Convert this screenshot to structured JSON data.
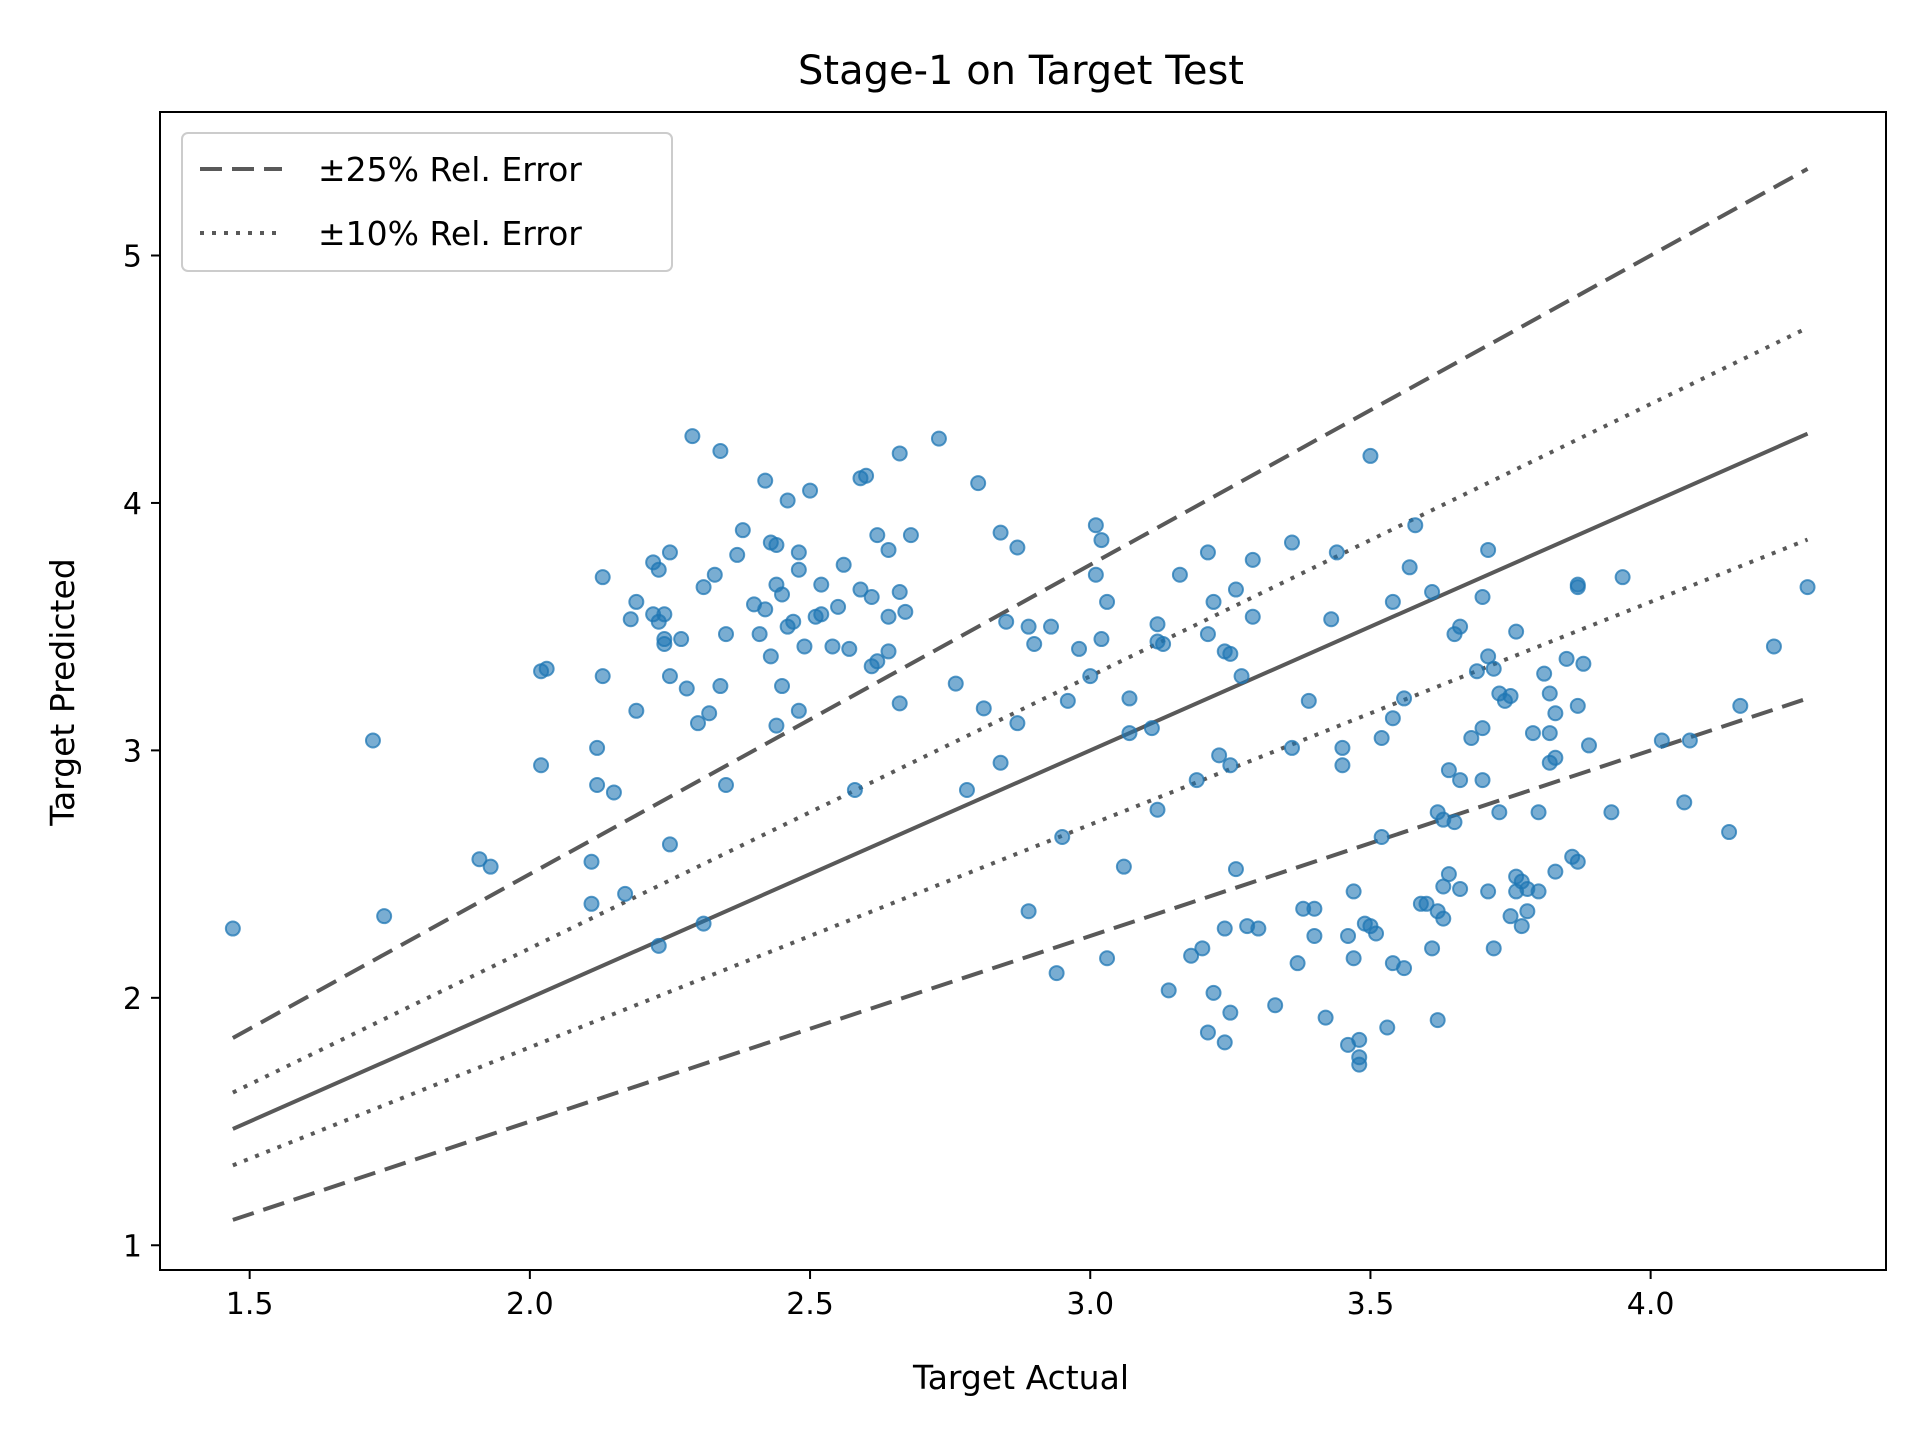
{
  "chart_data": {
    "type": "scatter",
    "title": "Stage-1 on Target Test",
    "xlabel": "Target Actual",
    "ylabel": "Target Predicted",
    "xlim": [
      1.34,
      4.42
    ],
    "ylim": [
      0.9,
      5.58
    ],
    "xticks": [
      1.5,
      2.0,
      2.5,
      3.0,
      3.5,
      4.0
    ],
    "xtick_labels": [
      "1.5",
      "2.0",
      "2.5",
      "3.0",
      "3.5",
      "4.0"
    ],
    "yticks": [
      1,
      2,
      3,
      4,
      5
    ],
    "ytick_labels": [
      "1",
      "2",
      "3",
      "4",
      "5"
    ],
    "grid": false,
    "legend_position": "top-left",
    "colors": {
      "points": "#1f77b4",
      "lines": "#595959"
    },
    "reference_lines": [
      {
        "kind": "identity",
        "style": "solid",
        "factor": 1.0,
        "x_range": [
          1.47,
          4.28
        ]
      },
      {
        "kind": "upper-25",
        "style": "dashed",
        "factor": 1.25,
        "x_range": [
          1.47,
          4.28
        ],
        "legend": "±25% Rel. Error"
      },
      {
        "kind": "lower-25",
        "style": "dashed",
        "factor": 0.75,
        "x_range": [
          1.47,
          4.28
        ]
      },
      {
        "kind": "upper-10",
        "style": "dotted",
        "factor": 1.1,
        "x_range": [
          1.47,
          4.28
        ],
        "legend": "±10% Rel. Error"
      },
      {
        "kind": "lower-10",
        "style": "dotted",
        "factor": 0.9,
        "x_range": [
          1.47,
          4.28
        ]
      }
    ],
    "legend": [
      {
        "label": "±25% Rel. Error",
        "style": "dashed"
      },
      {
        "label": "±10% Rel. Error",
        "style": "dotted"
      }
    ],
    "points": [
      [
        1.47,
        2.28
      ],
      [
        1.72,
        3.04
      ],
      [
        1.74,
        2.33
      ],
      [
        1.91,
        2.56
      ],
      [
        1.93,
        2.53
      ],
      [
        2.02,
        3.32
      ],
      [
        2.03,
        3.33
      ],
      [
        2.02,
        2.94
      ],
      [
        2.11,
        2.55
      ],
      [
        2.11,
        2.38
      ],
      [
        2.12,
        3.01
      ],
      [
        2.12,
        2.86
      ],
      [
        2.13,
        3.3
      ],
      [
        2.13,
        3.7
      ],
      [
        2.15,
        2.83
      ],
      [
        2.17,
        2.42
      ],
      [
        2.18,
        3.53
      ],
      [
        2.19,
        3.6
      ],
      [
        2.19,
        3.16
      ],
      [
        2.22,
        3.76
      ],
      [
        2.22,
        3.55
      ],
      [
        2.23,
        3.73
      ],
      [
        2.23,
        3.52
      ],
      [
        2.24,
        3.55
      ],
      [
        2.24,
        3.45
      ],
      [
        2.24,
        3.43
      ],
      [
        2.25,
        3.8
      ],
      [
        2.25,
        3.3
      ],
      [
        2.25,
        2.62
      ],
      [
        2.23,
        2.21
      ],
      [
        2.27,
        3.45
      ],
      [
        2.28,
        3.25
      ],
      [
        2.29,
        4.27
      ],
      [
        2.3,
        3.11
      ],
      [
        2.31,
        3.66
      ],
      [
        2.32,
        3.15
      ],
      [
        2.33,
        3.71
      ],
      [
        2.34,
        3.26
      ],
      [
        2.34,
        4.21
      ],
      [
        2.35,
        3.47
      ],
      [
        2.35,
        2.86
      ],
      [
        2.31,
        2.3
      ],
      [
        2.37,
        3.79
      ],
      [
        2.38,
        3.89
      ],
      [
        2.4,
        3.59
      ],
      [
        2.41,
        3.47
      ],
      [
        2.42,
        4.09
      ],
      [
        2.42,
        3.57
      ],
      [
        2.43,
        3.38
      ],
      [
        2.43,
        3.84
      ],
      [
        2.44,
        3.83
      ],
      [
        2.44,
        3.67
      ],
      [
        2.44,
        3.1
      ],
      [
        2.45,
        3.63
      ],
      [
        2.45,
        3.26
      ],
      [
        2.46,
        4.01
      ],
      [
        2.46,
        3.5
      ],
      [
        2.47,
        3.52
      ],
      [
        2.48,
        3.73
      ],
      [
        2.48,
        3.8
      ],
      [
        2.49,
        3.42
      ],
      [
        2.48,
        3.16
      ],
      [
        2.5,
        4.05
      ],
      [
        2.51,
        3.54
      ],
      [
        2.52,
        3.67
      ],
      [
        2.52,
        3.55
      ],
      [
        2.54,
        3.42
      ],
      [
        2.55,
        3.58
      ],
      [
        2.56,
        3.75
      ],
      [
        2.57,
        3.41
      ],
      [
        2.58,
        2.84
      ],
      [
        2.59,
        4.1
      ],
      [
        2.59,
        3.65
      ],
      [
        2.6,
        4.11
      ],
      [
        2.61,
        3.62
      ],
      [
        2.61,
        3.34
      ],
      [
        2.62,
        3.87
      ],
      [
        2.62,
        3.36
      ],
      [
        2.64,
        3.81
      ],
      [
        2.64,
        3.54
      ],
      [
        2.64,
        3.4
      ],
      [
        2.66,
        4.2
      ],
      [
        2.66,
        3.64
      ],
      [
        2.67,
        3.56
      ],
      [
        2.68,
        3.87
      ],
      [
        2.66,
        3.19
      ],
      [
        2.73,
        4.26
      ],
      [
        2.76,
        3.27
      ],
      [
        2.78,
        2.84
      ],
      [
        2.8,
        4.08
      ],
      [
        2.81,
        3.17
      ],
      [
        2.84,
        3.88
      ],
      [
        2.85,
        3.52
      ],
      [
        2.84,
        2.95
      ],
      [
        2.87,
        3.82
      ],
      [
        2.87,
        3.11
      ],
      [
        2.89,
        3.5
      ],
      [
        2.9,
        3.43
      ],
      [
        2.89,
        2.35
      ],
      [
        2.93,
        3.5
      ],
      [
        2.94,
        2.1
      ],
      [
        2.96,
        3.2
      ],
      [
        2.95,
        2.65
      ],
      [
        2.98,
        3.41
      ],
      [
        3.0,
        3.3
      ],
      [
        3.01,
        3.71
      ],
      [
        3.01,
        3.91
      ],
      [
        3.02,
        3.85
      ],
      [
        3.02,
        3.45
      ],
      [
        3.03,
        3.6
      ],
      [
        3.03,
        2.16
      ],
      [
        3.06,
        2.53
      ],
      [
        3.07,
        3.21
      ],
      [
        3.07,
        3.07
      ],
      [
        3.11,
        3.09
      ],
      [
        3.12,
        3.51
      ],
      [
        3.12,
        3.44
      ],
      [
        3.13,
        3.43
      ],
      [
        3.12,
        2.76
      ],
      [
        3.14,
        2.03
      ],
      [
        3.16,
        3.71
      ],
      [
        3.18,
        2.17
      ],
      [
        3.19,
        2.88
      ],
      [
        3.2,
        2.2
      ],
      [
        3.21,
        3.47
      ],
      [
        3.21,
        3.8
      ],
      [
        3.22,
        3.6
      ],
      [
        3.22,
        2.02
      ],
      [
        3.23,
        2.98
      ],
      [
        3.24,
        3.4
      ],
      [
        3.24,
        2.28
      ],
      [
        3.24,
        1.82
      ],
      [
        3.25,
        3.39
      ],
      [
        3.25,
        2.94
      ],
      [
        3.25,
        1.94
      ],
      [
        3.26,
        3.65
      ],
      [
        3.26,
        2.52
      ],
      [
        3.27,
        3.3
      ],
      [
        3.28,
        2.29
      ],
      [
        3.29,
        3.54
      ],
      [
        3.29,
        3.77
      ],
      [
        3.3,
        2.28
      ],
      [
        3.21,
        1.86
      ],
      [
        3.33,
        1.97
      ],
      [
        3.36,
        3.84
      ],
      [
        3.36,
        3.01
      ],
      [
        3.37,
        2.14
      ],
      [
        3.38,
        2.36
      ],
      [
        3.39,
        3.2
      ],
      [
        3.4,
        2.36
      ],
      [
        3.4,
        2.25
      ],
      [
        3.42,
        1.92
      ],
      [
        3.43,
        3.53
      ],
      [
        3.44,
        3.8
      ],
      [
        3.45,
        2.94
      ],
      [
        3.45,
        3.01
      ],
      [
        3.46,
        2.25
      ],
      [
        3.47,
        2.43
      ],
      [
        3.46,
        1.81
      ],
      [
        3.47,
        2.16
      ],
      [
        3.48,
        1.83
      ],
      [
        3.48,
        1.76
      ],
      [
        3.48,
        1.73
      ],
      [
        3.49,
        2.3
      ],
      [
        3.5,
        2.29
      ],
      [
        3.5,
        4.19
      ],
      [
        3.51,
        2.26
      ],
      [
        3.52,
        3.05
      ],
      [
        3.52,
        2.65
      ],
      [
        3.53,
        1.88
      ],
      [
        3.54,
        3.6
      ],
      [
        3.54,
        3.13
      ],
      [
        3.54,
        2.14
      ],
      [
        3.56,
        3.21
      ],
      [
        3.56,
        2.12
      ],
      [
        3.57,
        3.74
      ],
      [
        3.58,
        3.91
      ],
      [
        3.59,
        2.38
      ],
      [
        3.6,
        2.38
      ],
      [
        3.61,
        2.2
      ],
      [
        3.61,
        3.64
      ],
      [
        3.62,
        2.35
      ],
      [
        3.62,
        2.75
      ],
      [
        3.62,
        1.91
      ],
      [
        3.63,
        2.45
      ],
      [
        3.63,
        2.32
      ],
      [
        3.63,
        2.72
      ],
      [
        3.64,
        2.5
      ],
      [
        3.64,
        2.92
      ],
      [
        3.65,
        2.71
      ],
      [
        3.65,
        3.47
      ],
      [
        3.66,
        2.44
      ],
      [
        3.66,
        2.88
      ],
      [
        3.66,
        3.5
      ],
      [
        3.68,
        3.05
      ],
      [
        3.69,
        3.32
      ],
      [
        3.7,
        3.62
      ],
      [
        3.7,
        3.09
      ],
      [
        3.7,
        2.88
      ],
      [
        3.71,
        3.81
      ],
      [
        3.71,
        3.38
      ],
      [
        3.71,
        2.43
      ],
      [
        3.72,
        3.33
      ],
      [
        3.72,
        2.2
      ],
      [
        3.73,
        2.75
      ],
      [
        3.73,
        3.23
      ],
      [
        3.74,
        3.2
      ],
      [
        3.75,
        3.22
      ],
      [
        3.75,
        2.33
      ],
      [
        3.76,
        3.48
      ],
      [
        3.76,
        2.43
      ],
      [
        3.76,
        2.49
      ],
      [
        3.77,
        2.47
      ],
      [
        3.77,
        2.29
      ],
      [
        3.78,
        2.44
      ],
      [
        3.78,
        2.35
      ],
      [
        3.79,
        3.07
      ],
      [
        3.8,
        2.75
      ],
      [
        3.8,
        2.43
      ],
      [
        3.81,
        3.31
      ],
      [
        3.82,
        3.23
      ],
      [
        3.82,
        3.07
      ],
      [
        3.82,
        2.95
      ],
      [
        3.83,
        3.15
      ],
      [
        3.83,
        2.97
      ],
      [
        3.83,
        2.51
      ],
      [
        3.85,
        3.37
      ],
      [
        3.86,
        2.57
      ],
      [
        3.87,
        3.67
      ],
      [
        3.87,
        3.66
      ],
      [
        3.87,
        3.18
      ],
      [
        3.87,
        2.55
      ],
      [
        3.88,
        3.35
      ],
      [
        3.89,
        3.02
      ],
      [
        3.93,
        2.75
      ],
      [
        3.95,
        3.7
      ],
      [
        4.02,
        3.04
      ],
      [
        4.06,
        2.79
      ],
      [
        4.07,
        3.04
      ],
      [
        4.14,
        2.67
      ],
      [
        4.16,
        3.18
      ],
      [
        4.22,
        3.42
      ],
      [
        4.28,
        3.66
      ]
    ]
  }
}
